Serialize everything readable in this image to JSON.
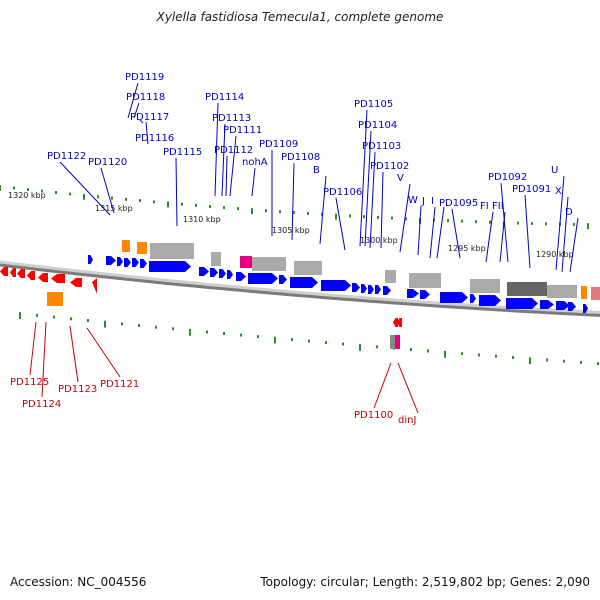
{
  "title": "Xylella fastidiosa Temecula1, complete genome",
  "footer": {
    "accession": "Accession: NC_004556",
    "topology": "Topology: circular; Length: 2,519,802 bp; Genes: 2,090"
  },
  "colors": {
    "forward_gene": "#0000ff",
    "reverse_gene": "#ff0000",
    "forward_label": "#0000cc",
    "reverse_label": "#cc0000",
    "feature_gray": "#aaaaaa",
    "feature_orange": "#ff8800",
    "feature_magenta": "#e6007e",
    "ruler_tick": "#2e8b2e",
    "backbone": "#888888"
  },
  "scale_labels": [
    "1320 kbp",
    "1315 kbp",
    "1310 kbp",
    "1305 kbp",
    "1300 kbp",
    "1295 kbp",
    "1290 kbp"
  ],
  "forward_labels": [
    "PD1119",
    "PD1118",
    "PD1117",
    "PD1116",
    "PD1114",
    "PD1113",
    "PD1111",
    "PD1112",
    "nohA",
    "PD1115",
    "PD1122",
    "PD1120",
    "PD1109",
    "PD1108",
    "B",
    "PD1105",
    "PD1104",
    "PD1103",
    "PD1102",
    "V",
    "PD1106",
    "W",
    "J",
    "I",
    "PD1095",
    "FI",
    "FII",
    "PD1092",
    "PD1091",
    "U",
    "X",
    "D"
  ],
  "reverse_labels": [
    "PD1125",
    "PD1124",
    "PD1123",
    "PD1121",
    "PD1100",
    "dinJ"
  ]
}
